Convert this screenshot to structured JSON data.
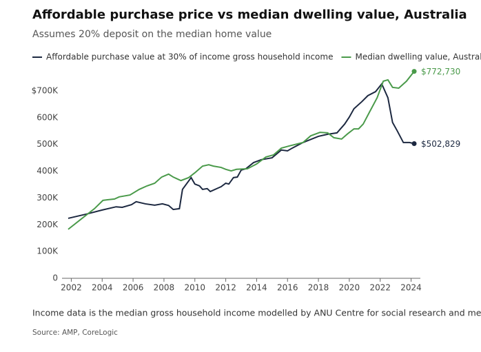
{
  "chart_data": {
    "type": "line",
    "title": "Affordable purchase price vs median dwelling value, Australia",
    "subtitle": "Assumes 20% deposit on the median home value",
    "footnote": "Income data is the median gross household income modelled by ANU Centre for social research and methods",
    "source": "Source: AMP, CoreLogic",
    "xlim": [
      2001.4,
      2024.6
    ],
    "xticks": [
      2002,
      2004,
      2006,
      2008,
      2010,
      2012,
      2014,
      2016,
      2018,
      2020,
      2022,
      2024
    ],
    "ylim": [
      0,
      800000
    ],
    "yticks": [
      0,
      {
        "value": 100000,
        "label": "100K"
      },
      {
        "value": 200000,
        "label": "200K"
      },
      {
        "value": 300000,
        "label": "300K"
      },
      {
        "value": 400000,
        "label": "400K"
      },
      {
        "value": 500000,
        "label": "500K"
      },
      {
        "value": 600000,
        "label": "600K"
      },
      {
        "value": 700000,
        "label": "$700K"
      }
    ],
    "grid": false,
    "legend": "top",
    "series": [
      {
        "name": "Affordable purchase value at 30% of income gross household income",
        "color": "#1c2840",
        "x": [
          2001.8,
          2003,
          2004,
          2004.9,
          2005.3,
          2005.9,
          2006.2,
          2006.8,
          2007.4,
          2007.9,
          2008.3,
          2008.6,
          2009.0,
          2009.2,
          2009.76,
          2010.0,
          2010.3,
          2010.5,
          2010.8,
          2011.0,
          2011.5,
          2011.7,
          2012.0,
          2012.2,
          2012.5,
          2012.75,
          2013.0,
          2013.3,
          2013.8,
          2014.3,
          2015.0,
          2015.6,
          2016.0,
          2016.3,
          2017.0,
          2018.0,
          2018.6,
          2019.2,
          2019.7,
          2020.0,
          2020.3,
          2020.8,
          2021.2,
          2021.7,
          2022.1,
          2022.5,
          2022.8,
          2023.1,
          2023.5,
          2023.9,
          2024.2
        ],
        "values": [
          224000,
          240000,
          255000,
          267000,
          265000,
          275000,
          286000,
          278000,
          273000,
          278000,
          272000,
          257000,
          260000,
          332000,
          376000,
          352000,
          345000,
          332000,
          335000,
          324000,
          337000,
          342000,
          355000,
          352000,
          376000,
          378000,
          404000,
          409000,
          432000,
          443000,
          450000,
          479000,
          476000,
          486000,
          507000,
          530000,
          538000,
          543000,
          576000,
          602000,
          633000,
          659000,
          682000,
          697000,
          726000,
          674000,
          582000,
          551000,
          507000,
          507000,
          502829
        ],
        "value_labels": [
          null,
          null,
          null,
          null,
          null,
          null,
          null,
          null,
          null,
          null,
          null,
          null,
          null,
          null,
          null,
          null,
          null,
          null,
          null,
          null,
          null,
          null,
          null,
          null,
          null,
          null,
          null,
          null,
          null,
          null,
          null,
          null,
          null,
          null,
          null,
          null,
          null,
          null,
          null,
          null,
          null,
          null,
          null,
          null,
          null,
          null,
          null,
          null,
          null,
          null,
          "$502,829"
        ]
      },
      {
        "name": "Median dwelling value, Australia",
        "color": "#4a9a4a",
        "x": [
          2001.8,
          2002.7,
          2003.5,
          2004.05,
          2004.3,
          2004.8,
          2005.1,
          2005.8,
          2006.4,
          2006.9,
          2007.4,
          2007.85,
          2008.3,
          2008.6,
          2009.1,
          2009.6,
          2010.0,
          2010.5,
          2010.9,
          2011.2,
          2011.7,
          2012.0,
          2012.35,
          2012.7,
          2013.4,
          2014.0,
          2014.6,
          2015.1,
          2015.6,
          2016.1,
          2017.0,
          2017.5,
          2018.1,
          2018.6,
          2019.0,
          2019.5,
          2019.9,
          2020.3,
          2020.6,
          2020.9,
          2021.3,
          2021.8,
          2022.2,
          2022.5,
          2022.8,
          2023.2,
          2023.7,
          2024.2
        ],
        "values": [
          183000,
          224000,
          260000,
          291000,
          293000,
          296000,
          304000,
          311000,
          332000,
          345000,
          355000,
          378000,
          389000,
          378000,
          365000,
          376000,
          394000,
          419000,
          424000,
          419000,
          414000,
          407000,
          401000,
          407000,
          409000,
          427000,
          453000,
          461000,
          486000,
          494000,
          507000,
          532000,
          545000,
          543000,
          525000,
          520000,
          540000,
          558000,
          558000,
          576000,
          620000,
          674000,
          736000,
          741000,
          713000,
          710000,
          736000,
          772730
        ],
        "value_labels": [
          null,
          null,
          null,
          null,
          null,
          null,
          null,
          null,
          null,
          null,
          null,
          null,
          null,
          null,
          null,
          null,
          null,
          null,
          null,
          null,
          null,
          null,
          null,
          null,
          null,
          null,
          null,
          null,
          null,
          null,
          null,
          null,
          null,
          null,
          null,
          null,
          null,
          null,
          null,
          null,
          null,
          null,
          null,
          null,
          null,
          null,
          null,
          "$772,730"
        ]
      }
    ]
  }
}
